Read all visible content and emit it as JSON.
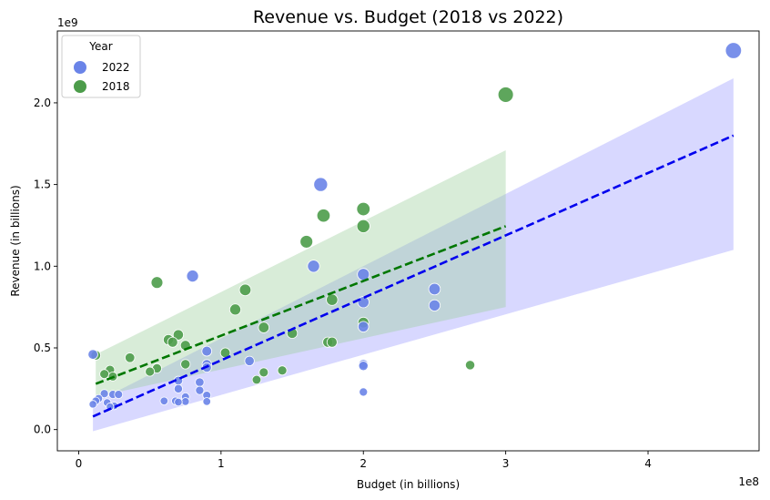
{
  "chart_data": {
    "type": "scatter",
    "title": "Revenue vs. Budget (2018 vs 2022)",
    "xlabel": "Budget (in billions)",
    "ylabel": "Revenue (in billions)",
    "x_offset_text": "1e8",
    "y_offset_text": "1e9",
    "xlim": [
      -15000000,
      478000000
    ],
    "ylim": [
      -130000000,
      2440000000
    ],
    "xticks": [
      0,
      100000000,
      200000000,
      300000000,
      400000000
    ],
    "xtick_labels": [
      "0",
      "1",
      "2",
      "3",
      "4"
    ],
    "yticks": [
      0,
      500000000,
      1000000000,
      1500000000,
      2000000000
    ],
    "ytick_labels": [
      "0.0",
      "0.5",
      "1.0",
      "1.5",
      "2.0"
    ],
    "grid": false,
    "legend": {
      "title": "Year",
      "placement": "top-left",
      "entries": [
        {
          "label": "2022",
          "color": "#6a84e8"
        },
        {
          "label": "2018",
          "color": "#4c9c4a"
        }
      ]
    },
    "series": [
      {
        "name": "2022",
        "color": "#6a84e8",
        "trend_color": "#0000ee",
        "band_color": "#9999ff",
        "trendline": {
          "x": [
            10000000,
            460000000
          ],
          "y": [
            80000000,
            1800000000
          ]
        },
        "confidence_band": {
          "x": [
            10000000,
            460000000
          ],
          "lower": [
            -10000000,
            1100000000
          ],
          "upper": [
            160000000,
            2150000000
          ]
        },
        "points": [
          {
            "x": 460000000,
            "y": 2320000000,
            "size": 2.32
          },
          {
            "x": 170000000,
            "y": 1500000000,
            "size": 1.5
          },
          {
            "x": 80000000,
            "y": 940000000,
            "size": 0.94
          },
          {
            "x": 165000000,
            "y": 1000000000,
            "size": 1.0
          },
          {
            "x": 200000000,
            "y": 950000000,
            "size": 0.95
          },
          {
            "x": 250000000,
            "y": 860000000,
            "size": 0.86
          },
          {
            "x": 200000000,
            "y": 780000000,
            "size": 0.78
          },
          {
            "x": 250000000,
            "y": 760000000,
            "size": 0.76
          },
          {
            "x": 200000000,
            "y": 630000000,
            "size": 0.63
          },
          {
            "x": 90000000,
            "y": 480000000,
            "size": 0.48
          },
          {
            "x": 10000000,
            "y": 460000000,
            "size": 0.46
          },
          {
            "x": 120000000,
            "y": 420000000,
            "size": 0.42
          },
          {
            "x": 90000000,
            "y": 400000000,
            "size": 0.4
          },
          {
            "x": 200000000,
            "y": 400000000,
            "size": 0.4
          },
          {
            "x": 200000000,
            "y": 390000000,
            "size": 0.39
          },
          {
            "x": 90000000,
            "y": 380000000,
            "size": 0.38
          },
          {
            "x": 70000000,
            "y": 300000000,
            "size": 0.3
          },
          {
            "x": 85000000,
            "y": 290000000,
            "size": 0.29
          },
          {
            "x": 70000000,
            "y": 250000000,
            "size": 0.25
          },
          {
            "x": 85000000,
            "y": 240000000,
            "size": 0.24
          },
          {
            "x": 200000000,
            "y": 230000000,
            "size": 0.23
          },
          {
            "x": 18000000,
            "y": 220000000,
            "size": 0.22
          },
          {
            "x": 24000000,
            "y": 215000000,
            "size": 0.215
          },
          {
            "x": 28000000,
            "y": 215000000,
            "size": 0.215
          },
          {
            "x": 90000000,
            "y": 210000000,
            "size": 0.21
          },
          {
            "x": 75000000,
            "y": 200000000,
            "size": 0.2
          },
          {
            "x": 14000000,
            "y": 190000000,
            "size": 0.19
          },
          {
            "x": 12000000,
            "y": 175000000,
            "size": 0.175
          },
          {
            "x": 60000000,
            "y": 175000000,
            "size": 0.175
          },
          {
            "x": 68000000,
            "y": 175000000,
            "size": 0.175
          },
          {
            "x": 75000000,
            "y": 172000000,
            "size": 0.172
          },
          {
            "x": 90000000,
            "y": 172000000,
            "size": 0.172
          },
          {
            "x": 70000000,
            "y": 168000000,
            "size": 0.168
          },
          {
            "x": 20000000,
            "y": 165000000,
            "size": 0.165
          },
          {
            "x": 10000000,
            "y": 155000000,
            "size": 0.155
          },
          {
            "x": 25000000,
            "y": 145000000,
            "size": 0.145
          },
          {
            "x": 22000000,
            "y": 140000000,
            "size": 0.14
          }
        ]
      },
      {
        "name": "2018",
        "color": "#4c9c4a",
        "trend_color": "#007700",
        "band_color": "#99cc99",
        "trendline": {
          "x": [
            12000000,
            300000000
          ],
          "y": [
            280000000,
            1245000000
          ]
        },
        "confidence_band": {
          "x": [
            12000000,
            300000000
          ],
          "lower": [
            200000000,
            750000000
          ],
          "upper": [
            460000000,
            1710000000
          ]
        },
        "points": [
          {
            "x": 300000000,
            "y": 2050000000,
            "size": 2.05
          },
          {
            "x": 200000000,
            "y": 1350000000,
            "size": 1.35
          },
          {
            "x": 172000000,
            "y": 1310000000,
            "size": 1.31
          },
          {
            "x": 200000000,
            "y": 1245000000,
            "size": 1.245
          },
          {
            "x": 160000000,
            "y": 1150000000,
            "size": 1.15
          },
          {
            "x": 55000000,
            "y": 900000000,
            "size": 0.9
          },
          {
            "x": 117000000,
            "y": 855000000,
            "size": 0.855
          },
          {
            "x": 178000000,
            "y": 795000000,
            "size": 0.795
          },
          {
            "x": 110000000,
            "y": 735000000,
            "size": 0.735
          },
          {
            "x": 200000000,
            "y": 655000000,
            "size": 0.655
          },
          {
            "x": 130000000,
            "y": 625000000,
            "size": 0.625
          },
          {
            "x": 150000000,
            "y": 590000000,
            "size": 0.59
          },
          {
            "x": 70000000,
            "y": 580000000,
            "size": 0.58
          },
          {
            "x": 63000000,
            "y": 550000000,
            "size": 0.55
          },
          {
            "x": 66000000,
            "y": 535000000,
            "size": 0.535
          },
          {
            "x": 175000000,
            "y": 535000000,
            "size": 0.535
          },
          {
            "x": 178000000,
            "y": 535000000,
            "size": 0.535
          },
          {
            "x": 75000000,
            "y": 515000000,
            "size": 0.515
          },
          {
            "x": 103000000,
            "y": 470000000,
            "size": 0.47
          },
          {
            "x": 12000000,
            "y": 455000000,
            "size": 0.455
          },
          {
            "x": 36000000,
            "y": 440000000,
            "size": 0.44
          },
          {
            "x": 75000000,
            "y": 400000000,
            "size": 0.4
          },
          {
            "x": 275000000,
            "y": 395000000,
            "size": 0.395
          },
          {
            "x": 55000000,
            "y": 375000000,
            "size": 0.375
          },
          {
            "x": 22000000,
            "y": 365000000,
            "size": 0.365
          },
          {
            "x": 143000000,
            "y": 362000000,
            "size": 0.362
          },
          {
            "x": 50000000,
            "y": 355000000,
            "size": 0.355
          },
          {
            "x": 130000000,
            "y": 350000000,
            "size": 0.35
          },
          {
            "x": 18000000,
            "y": 340000000,
            "size": 0.34
          },
          {
            "x": 24000000,
            "y": 325000000,
            "size": 0.325
          },
          {
            "x": 125000000,
            "y": 305000000,
            "size": 0.305
          }
        ]
      }
    ]
  }
}
